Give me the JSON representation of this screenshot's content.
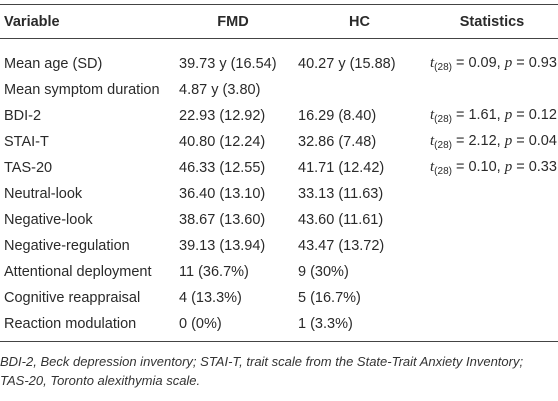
{
  "table": {
    "header": [
      "Variable",
      "FMD",
      "HC",
      "Statistics"
    ],
    "rows": [
      {
        "variable": "Mean age (SD)",
        "fmd": "39.73 y (16.54)",
        "hc": "40.27 y (15.88)",
        "stats": [
          "t",
          "(28)",
          "= 0.09,",
          "p",
          "= 0.93"
        ]
      },
      {
        "variable": "Mean symptom duration",
        "fmd": "4.87 y (3.80)"
      },
      {
        "variable": "BDI-2",
        "fmd": "22.93 (12.92)",
        "hc": "16.29 (8.40)",
        "stats": [
          "t",
          "(28)",
          "= 1.61,",
          "p",
          "= 0.12"
        ]
      },
      {
        "variable": "STAI-T",
        "fmd": "40.80 (12.24)",
        "hc": "32.86 (7.48)",
        "stats": [
          "t",
          "(28)",
          "= 2.12,",
          "p",
          "= 0.04"
        ]
      },
      {
        "variable": "TAS-20",
        "fmd": "46.33 (12.55)",
        "hc": "41.71 (12.42)",
        "stats": [
          "t",
          "(28)",
          "= 0.10,",
          "p",
          "= 0.33"
        ]
      },
      {
        "variable": "Neutral-look",
        "fmd": "36.40 (13.10)",
        "hc": "33.13 (11.63)"
      },
      {
        "variable": "Negative-look",
        "fmd": "38.67 (13.60)",
        "hc": "43.60 (11.61)"
      },
      {
        "variable": "Negative-regulation",
        "fmd": "39.13 (13.94)",
        "hc": "43.47 (13.72)"
      },
      {
        "variable": "Attentional deployment",
        "fmd": "11 (36.7%)",
        "hc": "9 (30%)"
      },
      {
        "variable": "Cognitive reappraisal",
        "fmd": "4 (13.3%)",
        "hc": "5 (16.7%)"
      },
      {
        "variable": "Reaction modulation",
        "fmd": "0 (0%)",
        "hc": "1 (3.3%)"
      }
    ],
    "footnote": [
      "BDI-2, Beck depression inventory; STAI-T, trait scale from the State-Trait Anxiety Inventory;",
      "TAS-20, Toronto alexithymia scale."
    ]
  }
}
